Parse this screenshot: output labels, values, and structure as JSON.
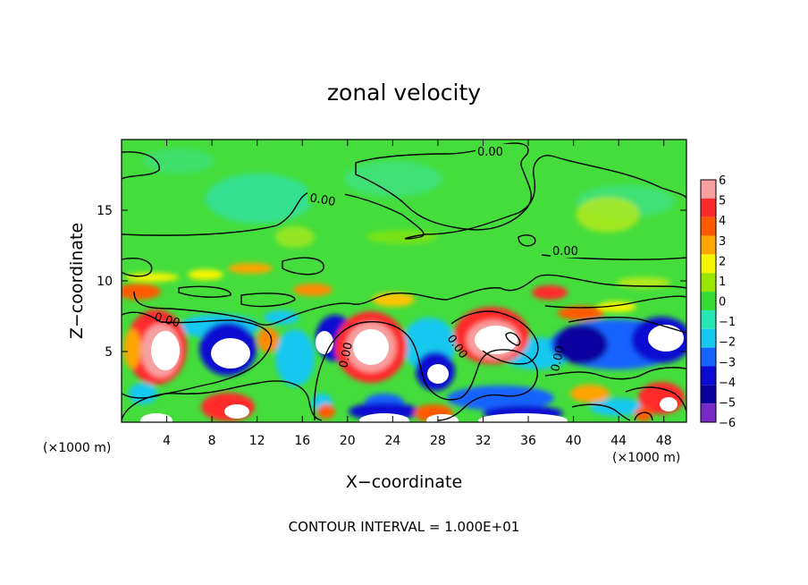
{
  "chart_data": {
    "type": "heatmap",
    "title": "zonal velocity",
    "xlabel": "X−coordinate",
    "ylabel": "Z−coordinate",
    "x_unit_left": "(×1000 m)",
    "x_unit_right": "(×1000 m)",
    "xlim": [
      0,
      50
    ],
    "ylim": [
      0,
      20
    ],
    "x_ticks": [
      4,
      8,
      12,
      16,
      20,
      24,
      28,
      32,
      36,
      40,
      44,
      48
    ],
    "x_tick_labels": [
      "4",
      "8",
      "12",
      "16",
      "20",
      "24",
      "28",
      "32",
      "36",
      "40",
      "44",
      "48"
    ],
    "y_ticks": [
      5,
      10,
      15
    ],
    "y_tick_labels": [
      "5",
      "10",
      "15"
    ],
    "colorbar": {
      "levels": [
        6,
        5,
        4,
        3,
        2,
        1,
        0,
        -1,
        -2,
        -3,
        -4,
        -5,
        -6
      ],
      "labels": [
        "6",
        "5",
        "4",
        "3",
        "2",
        "1",
        "0",
        "−1",
        "−2",
        "−3",
        "−4",
        "−5",
        "−6"
      ],
      "colors": [
        "#f7a0a0",
        "#ff2a2a",
        "#ff5a00",
        "#ffa500",
        "#f5f500",
        "#9ae600",
        "#33dd33",
        "#26e6b4",
        "#19c8f0",
        "#1464ff",
        "#0a0ad2",
        "#0a00a0",
        "#7828c8"
      ]
    },
    "contour_labels": [
      "0.00",
      "0.00",
      "0.00",
      "0.00",
      "0.00",
      "0.00",
      "0.00"
    ],
    "footer": "CONTOUR INTERVAL = 1.000E+01"
  }
}
